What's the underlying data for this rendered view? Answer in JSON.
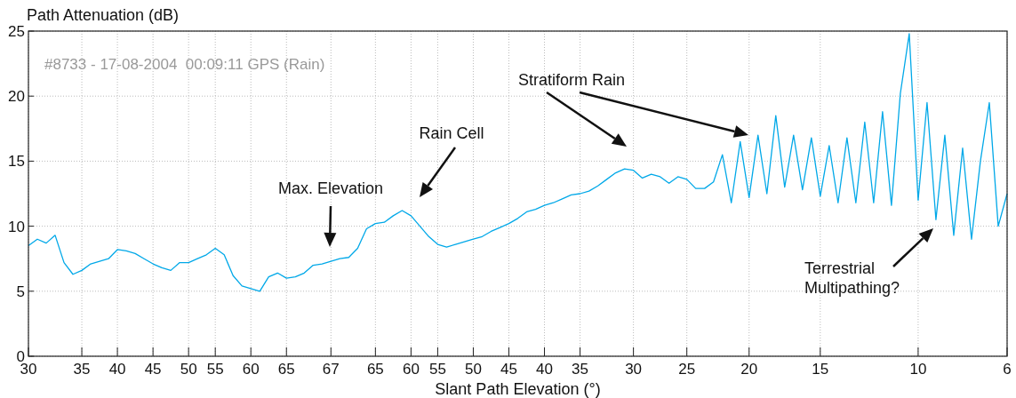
{
  "chart_data": {
    "type": "line",
    "xlabel": "Slant Path Elevation (°)",
    "ylabel": "Path Attenuation (dB)",
    "ylim": [
      0,
      25
    ],
    "yticks": [
      0,
      5,
      10,
      15,
      20,
      25
    ],
    "grid": true,
    "line_style": "solid",
    "marker": "none",
    "categories": [
      "30",
      null,
      null,
      null,
      null,
      null,
      "35",
      null,
      null,
      null,
      "40",
      null,
      null,
      null,
      "45",
      null,
      null,
      null,
      "50",
      null,
      null,
      "55",
      null,
      null,
      null,
      "60",
      null,
      null,
      null,
      "65",
      null,
      null,
      null,
      null,
      "67",
      null,
      null,
      null,
      null,
      "65",
      null,
      null,
      null,
      "60",
      null,
      null,
      "55",
      null,
      null,
      null,
      "50",
      null,
      null,
      null,
      "45",
      null,
      null,
      null,
      "40",
      null,
      null,
      null,
      "35",
      null,
      null,
      null,
      null,
      null,
      "30",
      null,
      null,
      null,
      null,
      null,
      "25",
      null,
      null,
      null,
      null,
      null,
      null,
      "20",
      null,
      null,
      null,
      null,
      null,
      null,
      null,
      "15",
      null,
      null,
      null,
      null,
      null,
      null,
      null,
      null,
      null,
      null,
      "10",
      null,
      null,
      null,
      null,
      null,
      null,
      null,
      null,
      null,
      "6"
    ],
    "series": [
      {
        "color": "#00a8e8",
        "values": [
          8.5,
          9.0,
          8.7,
          9.3,
          7.2,
          6.3,
          6.6,
          7.1,
          7.3,
          7.5,
          8.2,
          8.1,
          7.9,
          7.5,
          7.1,
          6.8,
          6.6,
          7.2,
          7.2,
          7.5,
          7.8,
          8.3,
          7.8,
          6.2,
          5.4,
          5.2,
          5.0,
          6.1,
          6.4,
          6.0,
          6.1,
          6.4,
          7.0,
          7.1,
          7.3,
          7.5,
          7.6,
          8.3,
          9.8,
          10.2,
          10.3,
          10.8,
          11.2,
          10.8,
          10.0,
          9.2,
          8.6,
          8.4,
          8.6,
          8.8,
          9.0,
          9.2,
          9.6,
          9.9,
          10.2,
          10.6,
          11.1,
          11.3,
          11.6,
          11.8,
          12.1,
          12.4,
          12.5,
          12.7,
          13.1,
          13.6,
          14.1,
          14.4,
          14.3,
          13.7,
          14.0,
          13.8,
          13.3,
          13.8,
          13.6,
          12.9,
          12.9,
          13.4,
          15.5,
          11.8,
          16.5,
          12.2,
          17.0,
          12.5,
          18.5,
          13.0,
          17.0,
          12.8,
          16.8,
          12.3,
          16.2,
          11.8,
          16.8,
          11.8,
          18.0,
          11.8,
          18.8,
          11.6,
          20.2,
          24.8,
          12.0,
          19.5,
          10.5,
          17.0,
          9.3,
          16.0,
          9.0,
          15.0,
          19.5,
          10.0,
          12.5
        ]
      }
    ],
    "annotations": [
      "#8733 - 17-08-2004  00:09:11 GPS (Rain)",
      "Max. Elevation",
      "Rain Cell",
      "Stratiform Rain",
      "Terrestrial Multipathing?"
    ]
  }
}
